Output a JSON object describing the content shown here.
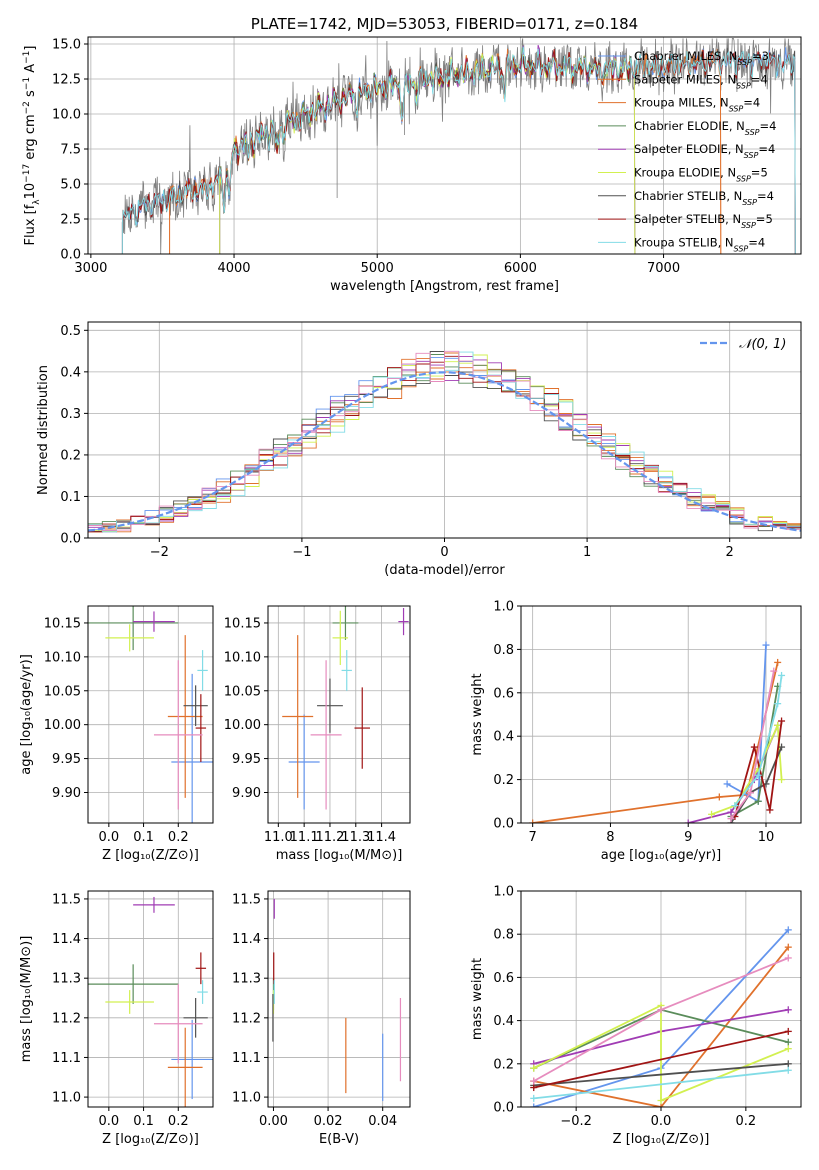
{
  "chart_data": [
    {
      "id": "spectrum",
      "type": "line",
      "title": "PLATE=1742, MJD=53053, FIBERID=0171, z=0.184",
      "xlabel": "wavelength [Angstrom, rest frame]",
      "ylabel_parts": [
        "Flux [f",
        "λ",
        "10",
        "−17",
        " erg cm",
        "−2",
        " s",
        "−1",
        " A",
        "−1",
        "]"
      ],
      "xlim": [
        2980,
        7960
      ],
      "ylim": [
        0,
        15.5
      ],
      "xticks": [
        3000,
        4000,
        5000,
        6000,
        7000
      ],
      "yticks": [
        0.0,
        2.5,
        5.0,
        7.5,
        10.0,
        12.5,
        15.0
      ],
      "ytick_labels": [
        "0.0",
        "2.5",
        "5.0",
        "7.5",
        "10.0",
        "12.5",
        "15.0"
      ],
      "data_curve": {
        "color": "#808080",
        "range": [
          3220,
          7920
        ]
      },
      "series": [
        {
          "name": "Chabrier MILES",
          "nssp": "3",
          "color": "#6495ed",
          "range": [
            3220,
            7920
          ]
        },
        {
          "name": "Salpeter MILES",
          "nssp": "4",
          "color": "#e0712c",
          "range": [
            3550,
            7400
          ]
        },
        {
          "name": "Kroupa MILES",
          "nssp": "4",
          "color": "#e0712c",
          "range": [
            3550,
            7400
          ]
        },
        {
          "name": "Chabrier ELODIE",
          "nssp": "4",
          "color": "#5a8c5a",
          "range": [
            3900,
            6800
          ]
        },
        {
          "name": "Salpeter ELODIE",
          "nssp": "4",
          "color": "#a03cb4",
          "range": [
            3900,
            6800
          ]
        },
        {
          "name": "Kroupa ELODIE",
          "nssp": "5",
          "color": "#d2f050",
          "range": [
            3900,
            6800
          ]
        },
        {
          "name": "Chabrier STELIB",
          "nssp": "4",
          "color": "#505050",
          "range": [
            3220,
            7920
          ]
        },
        {
          "name": "Salpeter STELIB",
          "nssp": "5",
          "color": "#a01414",
          "range": [
            3220,
            7920
          ]
        },
        {
          "name": "Kroupa STELIB",
          "nssp": "4",
          "color": "#82dce6",
          "range": [
            3220,
            7920
          ]
        }
      ],
      "continuum": [
        [
          3220,
          2.7
        ],
        [
          3400,
          3.5
        ],
        [
          3550,
          4.0
        ],
        [
          3700,
          4.5
        ],
        [
          3850,
          4.8
        ],
        [
          3950,
          6.0
        ],
        [
          4000,
          7.5
        ],
        [
          4200,
          8.5
        ],
        [
          4500,
          10.0
        ],
        [
          4800,
          11.2
        ],
        [
          5000,
          11.8
        ],
        [
          5200,
          12.3
        ],
        [
          5500,
          12.8
        ],
        [
          5800,
          13.2
        ],
        [
          6000,
          13.5
        ],
        [
          6300,
          13.4
        ],
        [
          6600,
          13.2
        ],
        [
          7000,
          13.4
        ],
        [
          7300,
          13.7
        ],
        [
          7600,
          13.8
        ],
        [
          7920,
          13.7
        ]
      ]
    },
    {
      "id": "residuals",
      "type": "line",
      "xlabel": "(data-model)/error",
      "ylabel": "Normed distribution",
      "xlim": [
        -2.5,
        2.5
      ],
      "ylim": [
        0,
        0.52
      ],
      "xticks": [
        -2,
        -1,
        0,
        1,
        2
      ],
      "xtick_labels": [
        "−2",
        "−1",
        "0",
        "1",
        "2"
      ],
      "yticks": [
        0.0,
        0.1,
        0.2,
        0.3,
        0.4,
        0.5
      ],
      "ytick_labels": [
        "0.0",
        "0.1",
        "0.2",
        "0.3",
        "0.4",
        "0.5"
      ],
      "gaussian": {
        "label": "𝒩(0, 1)",
        "color": "#6495ed",
        "mean": 0,
        "sigma": 1
      },
      "bin_width": 0.1
    },
    {
      "id": "age-vs-Z",
      "type": "scatter",
      "xlabel": "Z [log₁₀(Z/Z⊙)]",
      "ylabel": "age  [log₁₀(age/yr)]",
      "xlim": [
        -0.06,
        0.3
      ],
      "ylim": [
        9.855,
        10.175
      ],
      "xticks": [
        0.0,
        0.1,
        0.2
      ],
      "xtick_labels": [
        "0.0",
        "0.1",
        "0.2"
      ],
      "yticks": [
        9.9,
        9.95,
        10.0,
        10.05,
        10.1,
        10.15
      ],
      "ytick_labels": [
        "9.90",
        "9.95",
        "10.00",
        "10.05",
        "10.10",
        "10.15"
      ],
      "points": [
        {
          "color": "#6495ed",
          "x": 0.24,
          "xerr": 0.06,
          "y": 9.945,
          "yerr": 0.13
        },
        {
          "color": "#e0712c",
          "x": 0.22,
          "xerr": 0.05,
          "y": 10.012,
          "yerr": 0.12
        },
        {
          "color": "#5a8c5a",
          "x": 0.07,
          "xerr": 0.13,
          "y": 10.15,
          "yerr": 0.04
        },
        {
          "color": "#a03cb4",
          "x": 0.13,
          "xerr": 0.06,
          "y": 10.152,
          "yerr": 0.015
        },
        {
          "color": "#d2f050",
          "x": 0.06,
          "xerr": 0.07,
          "y": 10.128,
          "yerr": 0.02
        },
        {
          "color": "#505050",
          "x": 0.25,
          "xerr": 0.035,
          "y": 10.028,
          "yerr": 0.03
        },
        {
          "color": "#a01414",
          "x": 0.265,
          "xerr": 0.015,
          "y": 9.995,
          "yerr": 0.05
        },
        {
          "color": "#e68cbe",
          "x": 0.2,
          "xerr": 0.07,
          "y": 9.985,
          "yerr": 0.11
        },
        {
          "color": "#82dce6",
          "x": 0.27,
          "xerr": 0.015,
          "y": 10.08,
          "yerr": 0.03
        }
      ]
    },
    {
      "id": "age-vs-mass",
      "type": "scatter",
      "xlabel": "mass [log₁₀(M/M⊙)]",
      "ylabel": "",
      "xlim": [
        10.96,
        11.51
      ],
      "ylim": [
        9.855,
        10.175
      ],
      "xticks": [
        11.0,
        11.1,
        11.2,
        11.3,
        11.4
      ],
      "xtick_labels": [
        "11.0",
        "11.1",
        "11.2",
        "11.3",
        "11.4"
      ],
      "yticks": [
        9.9,
        9.95,
        10.0,
        10.05,
        10.1,
        10.15
      ],
      "ytick_labels": [
        "9.90",
        "9.95",
        "10.00",
        "10.05",
        "10.10",
        "10.15"
      ],
      "points": [
        {
          "color": "#6495ed",
          "x": 11.1,
          "xerr": 0.06,
          "y": 9.945,
          "yerr": 0.07
        },
        {
          "color": "#e0712c",
          "x": 11.075,
          "xerr": 0.06,
          "y": 10.012,
          "yerr": 0.12
        },
        {
          "color": "#5a8c5a",
          "x": 11.26,
          "xerr": 0.05,
          "y": 10.15,
          "yerr": 0.025
        },
        {
          "color": "#a03cb4",
          "x": 11.485,
          "xerr": 0.02,
          "y": 10.152,
          "yerr": 0.02
        },
        {
          "color": "#d2f050",
          "x": 11.24,
          "xerr": 0.03,
          "y": 10.128,
          "yerr": 0.04
        },
        {
          "color": "#505050",
          "x": 11.2,
          "xerr": 0.05,
          "y": 10.028,
          "yerr": 0.04
        },
        {
          "color": "#a01414",
          "x": 11.325,
          "xerr": 0.03,
          "y": 9.995,
          "yerr": 0.06
        },
        {
          "color": "#e68cbe",
          "x": 11.185,
          "xerr": 0.06,
          "y": 9.985,
          "yerr": 0.11
        },
        {
          "color": "#82dce6",
          "x": 11.265,
          "xerr": 0.02,
          "y": 10.08,
          "yerr": 0.03
        }
      ]
    },
    {
      "id": "weight-vs-age",
      "type": "line",
      "xlabel": "age  [log₁₀(age/yr)]",
      "ylabel": "mass weight",
      "xlim": [
        6.85,
        10.45
      ],
      "ylim": [
        0,
        1.0
      ],
      "xticks": [
        7,
        8,
        9,
        10
      ],
      "xtick_labels": [
        "7",
        "8",
        "9",
        "10"
      ],
      "yticks": [
        0.0,
        0.2,
        0.4,
        0.6,
        0.8,
        1.0
      ],
      "ytick_labels": [
        "0.0",
        "0.2",
        "0.4",
        "0.6",
        "0.8",
        "1.0"
      ],
      "series": [
        {
          "color": "#e0712c",
          "x": [
            7.0,
            9.4,
            9.75,
            10.15
          ],
          "y": [
            0.0,
            0.12,
            0.13,
            0.74
          ]
        },
        {
          "color": "#6495ed",
          "x": [
            9.5,
            9.9,
            10.0
          ],
          "y": [
            0.18,
            0.1,
            0.82
          ]
        },
        {
          "color": "#5a8c5a",
          "x": [
            9.55,
            9.9,
            10.15
          ],
          "y": [
            0.03,
            0.1,
            0.63
          ]
        },
        {
          "color": "#a03cb4",
          "x": [
            9.0,
            9.55,
            9.85,
            10.15
          ],
          "y": [
            0.0,
            0.05,
            0.2,
            0.45
          ]
        },
        {
          "color": "#d2f050",
          "x": [
            9.3,
            9.6,
            9.9,
            10.15,
            10.2
          ],
          "y": [
            0.04,
            0.08,
            0.25,
            0.45,
            0.2
          ]
        },
        {
          "color": "#505050",
          "x": [
            9.55,
            9.8,
            10.0,
            10.2
          ],
          "y": [
            0.0,
            0.14,
            0.18,
            0.35
          ]
        },
        {
          "color": "#a01414",
          "x": [
            9.6,
            9.85,
            10.05,
            10.2
          ],
          "y": [
            0.03,
            0.35,
            0.06,
            0.47
          ]
        },
        {
          "color": "#e68cbe",
          "x": [
            9.55,
            9.8,
            10.1
          ],
          "y": [
            0.02,
            0.14,
            0.7
          ]
        },
        {
          "color": "#82dce6",
          "x": [
            9.6,
            9.9,
            10.15,
            10.2
          ],
          "y": [
            0.08,
            0.22,
            0.55,
            0.68
          ]
        }
      ]
    },
    {
      "id": "mass-vs-Z",
      "type": "scatter",
      "xlabel": "Z [log₁₀(Z/Z⊙)]",
      "ylabel": "mass [log₁₀(M/M⊙)]",
      "xlim": [
        -0.06,
        0.3
      ],
      "ylim": [
        10.975,
        11.52
      ],
      "xticks": [
        0.0,
        0.1,
        0.2
      ],
      "xtick_labels": [
        "0.0",
        "0.1",
        "0.2"
      ],
      "yticks": [
        11.0,
        11.1,
        11.2,
        11.3,
        11.4,
        11.5
      ],
      "ytick_labels": [
        "11.0",
        "11.1",
        "11.2",
        "11.3",
        "11.4",
        "11.5"
      ],
      "points": [
        {
          "color": "#6495ed",
          "x": 0.24,
          "xerr": 0.06,
          "y": 11.095,
          "yerr": 0.1
        },
        {
          "color": "#e0712c",
          "x": 0.22,
          "xerr": 0.05,
          "y": 11.075,
          "yerr": 0.1
        },
        {
          "color": "#5a8c5a",
          "x": 0.07,
          "xerr": 0.13,
          "y": 11.285,
          "yerr": 0.05
        },
        {
          "color": "#a03cb4",
          "x": 0.13,
          "xerr": 0.06,
          "y": 11.485,
          "yerr": 0.02
        },
        {
          "color": "#d2f050",
          "x": 0.06,
          "xerr": 0.07,
          "y": 11.24,
          "yerr": 0.03
        },
        {
          "color": "#505050",
          "x": 0.25,
          "xerr": 0.035,
          "y": 11.2,
          "yerr": 0.05
        },
        {
          "color": "#a01414",
          "x": 0.265,
          "xerr": 0.015,
          "y": 11.325,
          "yerr": 0.04
        },
        {
          "color": "#e68cbe",
          "x": 0.2,
          "xerr": 0.07,
          "y": 11.185,
          "yerr": 0.1
        },
        {
          "color": "#82dce6",
          "x": 0.27,
          "xerr": 0.015,
          "y": 11.265,
          "yerr": 0.03
        }
      ]
    },
    {
      "id": "mass-vs-ebv",
      "type": "scatter",
      "xlabel": "E(B-V)",
      "ylabel": "",
      "xlim": [
        -0.002,
        0.05
      ],
      "ylim": [
        10.975,
        11.52
      ],
      "xticks": [
        0.0,
        0.02,
        0.04
      ],
      "xtick_labels": [
        "0.00",
        "0.02",
        "0.04"
      ],
      "yticks": [
        11.0,
        11.1,
        11.2,
        11.3,
        11.4,
        11.5
      ],
      "ytick_labels": [
        "11.0",
        "11.1",
        "11.2",
        "11.3",
        "11.4",
        "11.5"
      ],
      "points": [
        {
          "color": "#6495ed",
          "x": 0.04,
          "xerr": 0,
          "y": 11.075,
          "yerr": 0.085
        },
        {
          "color": "#e0712c",
          "x": 0.0265,
          "xerr": 0,
          "y": 11.105,
          "yerr": 0.095
        },
        {
          "color": "#5a8c5a",
          "x": 0.0,
          "xerr": 0,
          "y": 11.26,
          "yerr": 0.04
        },
        {
          "color": "#a03cb4",
          "x": 0.0003,
          "xerr": 0,
          "y": 11.475,
          "yerr": 0.025
        },
        {
          "color": "#d2f050",
          "x": 0.0,
          "xerr": 0,
          "y": 11.24,
          "yerr": 0.03
        },
        {
          "color": "#505050",
          "x": -0.0002,
          "xerr": 0,
          "y": 11.2,
          "yerr": 0.06
        },
        {
          "color": "#a01414",
          "x": 0.0001,
          "xerr": 0,
          "y": 11.325,
          "yerr": 0.04
        },
        {
          "color": "#e68cbe",
          "x": 0.0465,
          "xerr": 0,
          "y": 11.145,
          "yerr": 0.105
        },
        {
          "color": "#82dce6",
          "x": 0.0003,
          "xerr": 0,
          "y": 11.265,
          "yerr": 0.03
        }
      ]
    },
    {
      "id": "weight-vs-Z",
      "type": "line",
      "xlabel": "Z [log₁₀(Z/Z⊙)]",
      "ylabel": "mass weight",
      "xlim": [
        -0.33,
        0.33
      ],
      "ylim": [
        0,
        1.0
      ],
      "xticks": [
        -0.2,
        0.0,
        0.2
      ],
      "xtick_labels": [
        "−0.2",
        "0.0",
        "0.2"
      ],
      "yticks": [
        0.0,
        0.2,
        0.4,
        0.6,
        0.8,
        1.0
      ],
      "ytick_labels": [
        "0.0",
        "0.2",
        "0.4",
        "0.6",
        "0.8",
        "1.0"
      ],
      "series": [
        {
          "color": "#6495ed",
          "x": [
            -0.3,
            0.0,
            0.3
          ],
          "y": [
            0.0,
            0.18,
            0.82
          ]
        },
        {
          "color": "#e0712c",
          "x": [
            -0.3,
            0.0,
            0.3
          ],
          "y": [
            0.12,
            0.0,
            0.74
          ]
        },
        {
          "color": "#5a8c5a",
          "x": [
            -0.3,
            0.0,
            0.3
          ],
          "y": [
            0.18,
            0.45,
            0.3
          ]
        },
        {
          "color": "#a03cb4",
          "x": [
            -0.3,
            0.0,
            0.3
          ],
          "y": [
            0.2,
            0.35,
            0.45
          ]
        },
        {
          "color": "#d2f050",
          "x": [
            -0.3,
            0.0,
            0.0,
            0.3
          ],
          "y": [
            0.18,
            0.47,
            0.03,
            0.27
          ]
        },
        {
          "color": "#505050",
          "x": [
            -0.3,
            0.3
          ],
          "y": [
            0.1,
            0.2
          ]
        },
        {
          "color": "#a01414",
          "x": [
            -0.3,
            0.3
          ],
          "y": [
            0.09,
            0.35
          ]
        },
        {
          "color": "#e68cbe",
          "x": [
            -0.3,
            0.0,
            0.3
          ],
          "y": [
            0.12,
            0.45,
            0.69
          ]
        },
        {
          "color": "#82dce6",
          "x": [
            -0.3,
            0.3
          ],
          "y": [
            0.04,
            0.17
          ]
        }
      ]
    }
  ]
}
